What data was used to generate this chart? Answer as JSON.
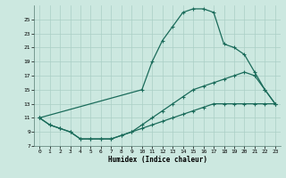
{
  "xlabel": "Humidex (Indice chaleur)",
  "bg_color": "#cce8e0",
  "line_color": "#1a6b5a",
  "grid_color": "#aacfc5",
  "xlim": [
    -0.5,
    23.5
  ],
  "ylim": [
    7,
    27
  ],
  "yticks": [
    7,
    9,
    11,
    13,
    15,
    17,
    19,
    21,
    23,
    25
  ],
  "xticks": [
    0,
    1,
    2,
    3,
    4,
    5,
    6,
    7,
    8,
    9,
    10,
    11,
    12,
    13,
    14,
    15,
    16,
    17,
    18,
    19,
    20,
    21,
    22,
    23
  ],
  "curve1_x": [
    0,
    1,
    2,
    3,
    4,
    5,
    6,
    7,
    8,
    9,
    10,
    11,
    12,
    13,
    14,
    15,
    16,
    17,
    18,
    19,
    20,
    21,
    22,
    23
  ],
  "curve1_y": [
    11,
    10,
    9.5,
    9,
    8,
    8,
    8,
    8,
    8.5,
    9,
    9.5,
    10,
    10.5,
    11,
    11.5,
    12,
    12.5,
    13,
    13,
    13,
    13,
    13,
    13,
    13
  ],
  "curve2_x": [
    0,
    1,
    2,
    3,
    4,
    5,
    6,
    7,
    8,
    9,
    10,
    11,
    12,
    13,
    14,
    15,
    16,
    17,
    18,
    19,
    20,
    21,
    22,
    23
  ],
  "curve2_y": [
    11,
    10,
    9.5,
    9,
    8,
    8,
    8,
    8,
    8.5,
    9,
    10,
    11,
    12,
    13,
    14,
    15,
    15.5,
    16,
    16.5,
    17,
    17.5,
    17,
    15,
    13
  ],
  "curve3_x": [
    0,
    10,
    11,
    12,
    13,
    14,
    15,
    16,
    17,
    18,
    19,
    20,
    21,
    22,
    23
  ],
  "curve3_y": [
    11,
    15,
    19,
    22,
    24,
    26,
    26.5,
    26.5,
    26,
    21.5,
    21,
    20,
    17.5,
    15,
    13
  ]
}
